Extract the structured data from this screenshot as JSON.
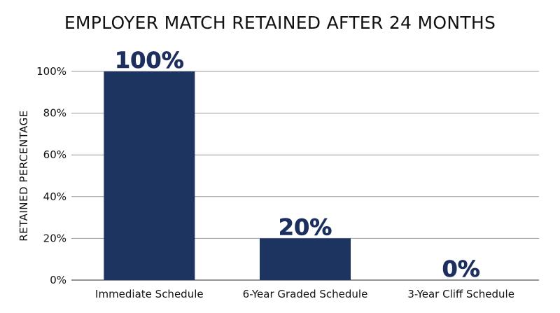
{
  "chart_data": {
    "type": "bar",
    "title": "EMPLOYER MATCH RETAINED AFTER 24 MONTHS",
    "ylabel": "RETAINED PERCENTAGE",
    "xlabel": "",
    "categories": [
      "Immediate Schedule",
      "6-Year Graded Schedule",
      "3-Year Cliff Schedule"
    ],
    "values": [
      100,
      20,
      0
    ],
    "data_labels": [
      "100%",
      "20%",
      "0%"
    ],
    "ylim": [
      0,
      100
    ],
    "yticks": [
      0,
      20,
      40,
      60,
      80,
      100
    ],
    "ytick_labels": [
      "0%",
      "20%",
      "40%",
      "60%",
      "80%",
      "100%"
    ],
    "grid": "horizontal",
    "bar_color": "#1d3461",
    "grid_color": "#999999"
  }
}
